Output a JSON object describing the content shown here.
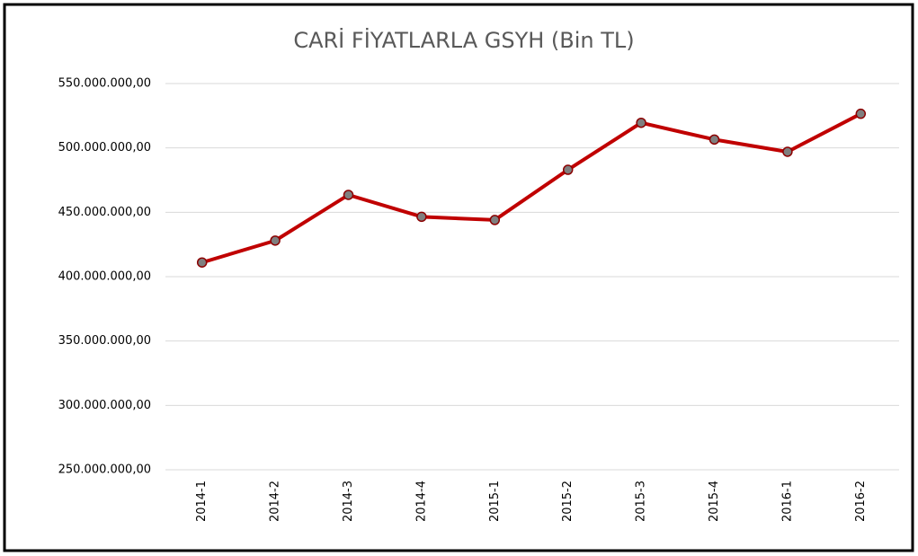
{
  "chart_data": {
    "type": "line",
    "title": "CARİ FİYATLARLA GSYH (Bin TL)",
    "categories": [
      "2014-1",
      "2014-2",
      "2014-3",
      "2014-4",
      "2015-1",
      "2015-2",
      "2015-3",
      "2015-4",
      "2016-1",
      "2016-2"
    ],
    "series": [
      {
        "name": "GSYH",
        "color": "#c00000",
        "values": [
          411000000,
          428000000,
          463500000,
          446500000,
          444000000,
          483000000,
          519500000,
          506500000,
          497000000,
          526500000
        ]
      }
    ],
    "ylim": [
      250000000,
      550000000
    ],
    "yticks": [
      {
        "value": 250000000,
        "label": "250.000.000,00"
      },
      {
        "value": 300000000,
        "label": "300.000.000,00"
      },
      {
        "value": 350000000,
        "label": "350.000.000,00"
      },
      {
        "value": 400000000,
        "label": "400.000.000,00"
      },
      {
        "value": 450000000,
        "label": "450.000.000,00"
      },
      {
        "value": 500000000,
        "label": "500.000.000,00"
      },
      {
        "value": 550000000,
        "label": "550.000.000,00"
      }
    ],
    "grid": true
  }
}
